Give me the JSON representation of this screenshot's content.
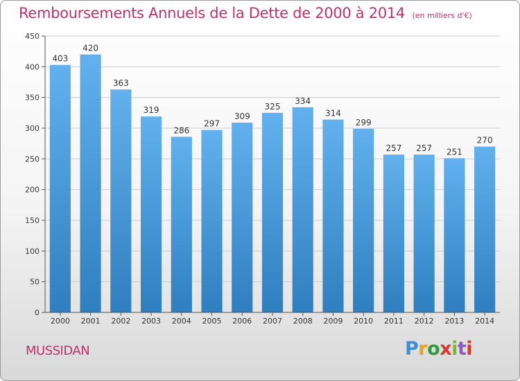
{
  "header": {
    "title": "Remboursements Annuels de la Dette de 2000 à 2014",
    "subtitle": "(en milliers d'€)"
  },
  "footer": {
    "city": "MUSSIDAN",
    "brand_letters": [
      "P",
      "r",
      "o",
      "x",
      "i",
      "t",
      "i"
    ]
  },
  "colors": {
    "bar_top": "#62b1ee",
    "bar_bottom": "#2f7fc0",
    "title": "#c0306a"
  },
  "chart_data": {
    "type": "bar",
    "title": "Remboursements Annuels de la Dette de 2000 à 2014",
    "subtitle": "(en milliers d'€)",
    "xlabel": "",
    "ylabel": "",
    "categories": [
      "2000",
      "2001",
      "2002",
      "2003",
      "2004",
      "2005",
      "2006",
      "2007",
      "2008",
      "2009",
      "2010",
      "2011",
      "2012",
      "2013",
      "2014"
    ],
    "values": [
      403,
      420,
      363,
      319,
      286,
      297,
      309,
      325,
      334,
      314,
      299,
      257,
      257,
      251,
      270
    ],
    "data_labels": [
      "403",
      "420",
      "363",
      "319",
      "286",
      "297",
      "309",
      "325",
      "334",
      "314",
      "299",
      "257",
      "257",
      "251",
      "270"
    ],
    "ylim": [
      0,
      450
    ],
    "yticks": [
      0,
      50,
      100,
      150,
      200,
      250,
      300,
      350,
      400,
      450
    ],
    "ytick_labels": [
      "0",
      "50",
      "100",
      "150",
      "200",
      "250",
      "300",
      "350",
      "400",
      "450"
    ],
    "grid": "horizontal",
    "legend": "none"
  }
}
